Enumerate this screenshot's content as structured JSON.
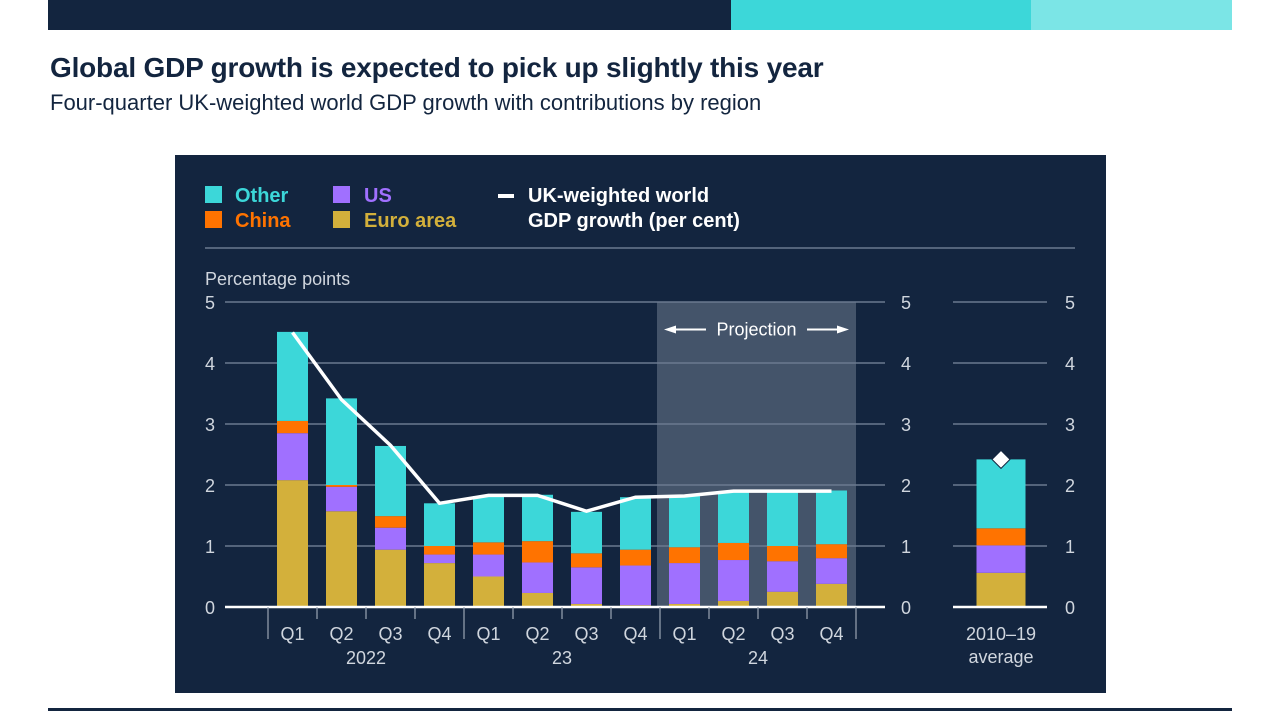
{
  "header": {
    "title": "Global GDP growth is expected to pick up slightly this year",
    "subtitle": "Four-quarter UK-weighted world GDP growth with contributions by region"
  },
  "colors": {
    "background": "#13253f",
    "other": "#3cd7d9",
    "china": "#ff7300",
    "us": "#a070ff",
    "euro_area": "#d3b03b",
    "line": "#ffffff",
    "projection_shade": "#44546a"
  },
  "chart_data": {
    "type": "bar",
    "stacked": true,
    "ylabel": "Percentage points",
    "ylim": [
      0,
      5
    ],
    "yticks": [
      0,
      1,
      2,
      3,
      4,
      5
    ],
    "grid": true,
    "legend_position": "top-left",
    "legend": [
      {
        "key": "other",
        "label": "Other"
      },
      {
        "key": "china",
        "label": "China"
      },
      {
        "key": "us",
        "label": "US"
      },
      {
        "key": "euro_area",
        "label": "Euro area"
      },
      {
        "key": "line",
        "label_line1": "UK-weighted world",
        "label_line2": "GDP growth (per cent)"
      }
    ],
    "categories": [
      "Q1",
      "Q2",
      "Q3",
      "Q4",
      "Q1",
      "Q2",
      "Q3",
      "Q4",
      "Q1",
      "Q2",
      "Q3",
      "Q4"
    ],
    "year_groups": [
      {
        "label": "2022",
        "start": 0,
        "end": 3
      },
      {
        "label": "23",
        "start": 4,
        "end": 7
      },
      {
        "label": "24",
        "start": 8,
        "end": 11
      }
    ],
    "projection": {
      "label": "Projection",
      "start": 8,
      "end": 11
    },
    "series": [
      {
        "name": "Euro area",
        "key": "euro_area",
        "values": [
          2.08,
          1.57,
          0.94,
          0.72,
          0.5,
          0.23,
          0.05,
          0.03,
          0.05,
          0.1,
          0.25,
          0.38
        ]
      },
      {
        "name": "US",
        "key": "us",
        "values": [
          0.77,
          0.4,
          0.36,
          0.14,
          0.36,
          0.5,
          0.6,
          0.65,
          0.67,
          0.67,
          0.5,
          0.42
        ]
      },
      {
        "name": "China",
        "key": "china",
        "values": [
          0.2,
          0.03,
          0.19,
          0.14,
          0.2,
          0.35,
          0.23,
          0.26,
          0.26,
          0.28,
          0.25,
          0.23
        ]
      },
      {
        "name": "Other",
        "key": "other",
        "values": [
          1.46,
          1.42,
          1.15,
          0.7,
          0.76,
          0.76,
          0.68,
          0.86,
          0.84,
          0.85,
          0.9,
          0.88
        ]
      }
    ],
    "line": {
      "name": "UK-weighted world GDP growth (per cent)",
      "values": [
        4.5,
        3.4,
        2.65,
        1.7,
        1.83,
        1.83,
        1.57,
        1.8,
        1.82,
        1.9,
        1.9,
        1.9
      ]
    },
    "average": {
      "label_line1": "2010–19",
      "label_line2": "average",
      "euro_area": 0.56,
      "us": 0.45,
      "china": 0.28,
      "other": 1.13,
      "line_value": 2.42
    }
  }
}
